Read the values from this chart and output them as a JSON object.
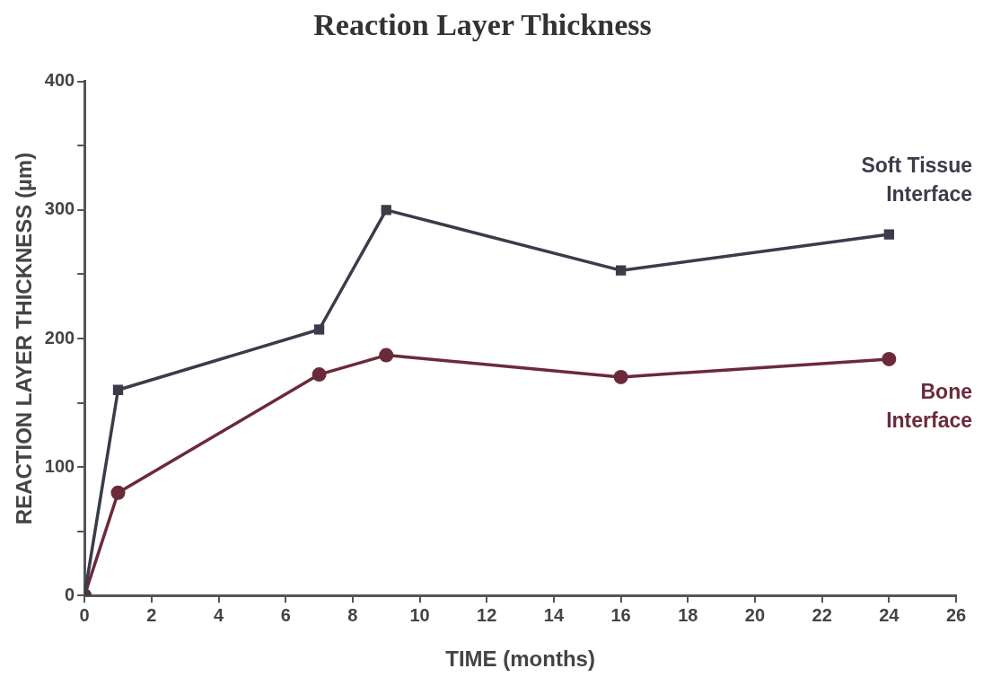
{
  "chart_data": {
    "type": "line",
    "title": "Reaction Layer Thickness",
    "xlabel": "TIME (months)",
    "ylabel": "REACTION LAYER THICKNESS (µm)",
    "xlim": [
      0,
      26
    ],
    "xticks": [
      0,
      2,
      4,
      6,
      8,
      10,
      12,
      14,
      16,
      18,
      20,
      22,
      24,
      26
    ],
    "ylim": [
      0,
      400
    ],
    "yticks": [
      0,
      {
        "value": 50,
        "label": null
      },
      100,
      {
        "value": 150,
        "label": null
      },
      200,
      {
        "value": 250,
        "label": null
      },
      300,
      {
        "value": 350,
        "label": null
      },
      400
    ],
    "grid": false,
    "legend": false,
    "line_style": "solid",
    "series": [
      {
        "name": "Soft Tissue Interface",
        "color": "#3b3b4a",
        "marker": "square",
        "x": [
          0,
          1,
          7,
          9,
          16,
          24
        ],
        "values": [
          0,
          160,
          207,
          300,
          253,
          281
        ]
      },
      {
        "name": "Bone Interface",
        "color": "#6b2a3a",
        "marker": "circle",
        "x": [
          0,
          1,
          7,
          9,
          16,
          24
        ],
        "values": [
          0,
          80,
          172,
          187,
          170,
          184
        ]
      }
    ]
  }
}
